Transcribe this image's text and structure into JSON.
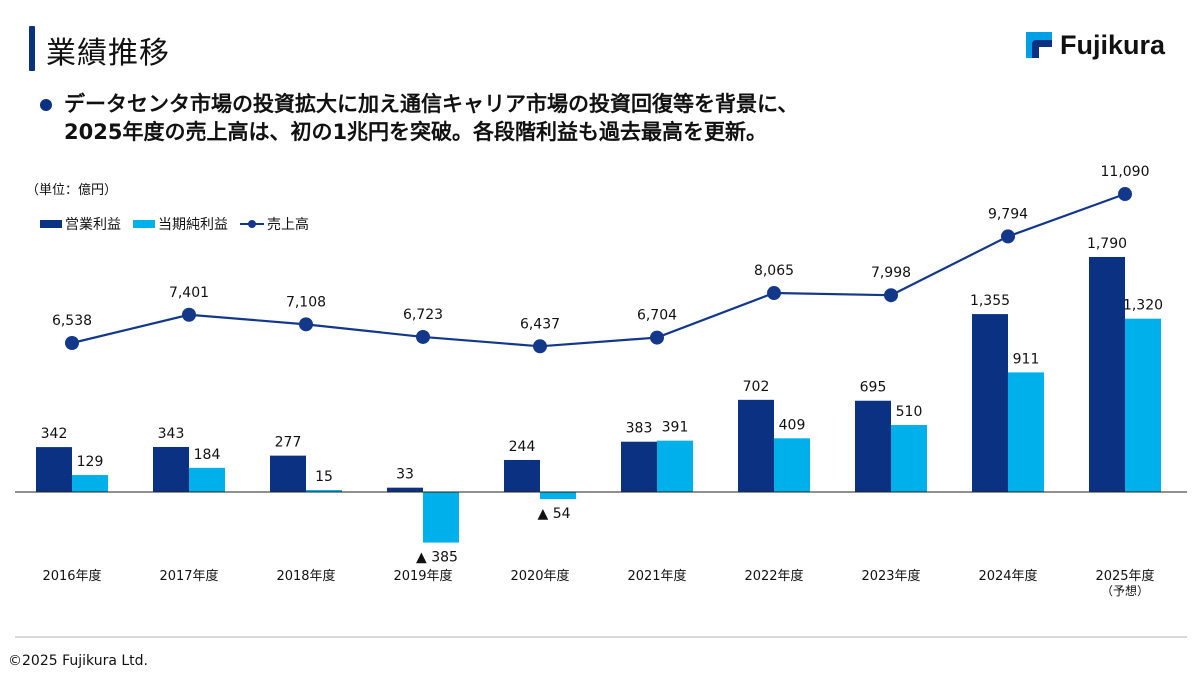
{
  "header": {
    "title": "業績推移",
    "bullet_line1": "データセンタ市場の投資拡大に加え通信キャリア市場の投資回復等を背景に、",
    "bullet_line2": "2025年度の売上高は、初の1兆円を突破。各段階利益も過去最高を更新。"
  },
  "logo": {
    "text": "Fujikura"
  },
  "footer": {
    "copyright": "©2025 Fujikura Ltd."
  },
  "chart_data": {
    "type": "bar+line",
    "unit": "（単位：億円）",
    "legend": [
      "営業利益",
      "当期純利益",
      "売上高"
    ],
    "legend_placement": "top-left",
    "categories": [
      "2016年度",
      "2017年度",
      "2018年度",
      "2019年度",
      "2020年度",
      "2021年度",
      "2022年度",
      "2023年度",
      "2024年度",
      "2025年度"
    ],
    "category_notes": [
      "",
      "",
      "",
      "",
      "",
      "",
      "",
      "",
      "",
      "（予想）"
    ],
    "grid": false,
    "colors": {
      "operating": "#0a3182",
      "net": "#00b0eb",
      "sales": "#13388a"
    },
    "series": [
      {
        "name": "営業利益",
        "type": "bar",
        "values": [
          342,
          343,
          277,
          33,
          244,
          383,
          702,
          695,
          1355,
          1790
        ],
        "labels": [
          "342",
          "343",
          "277",
          "33",
          "244",
          "383",
          "702",
          "695",
          "1,355",
          "1,790"
        ]
      },
      {
        "name": "当期純利益",
        "type": "bar",
        "values": [
          129,
          184,
          15,
          -385,
          -54,
          391,
          409,
          510,
          911,
          1320
        ],
        "labels": [
          "129",
          "184",
          "15",
          "▲ 385",
          "▲ 54",
          "391",
          "409",
          "510",
          "911",
          "1,320"
        ]
      },
      {
        "name": "売上高",
        "type": "line",
        "values": [
          6538,
          7401,
          7108,
          6723,
          6437,
          6704,
          8065,
          7998,
          9794,
          11090
        ],
        "labels": [
          "6,538",
          "7,401",
          "7,108",
          "6,723",
          "6,437",
          "6,704",
          "8,065",
          "7,998",
          "9,794",
          "11,090"
        ]
      }
    ]
  }
}
